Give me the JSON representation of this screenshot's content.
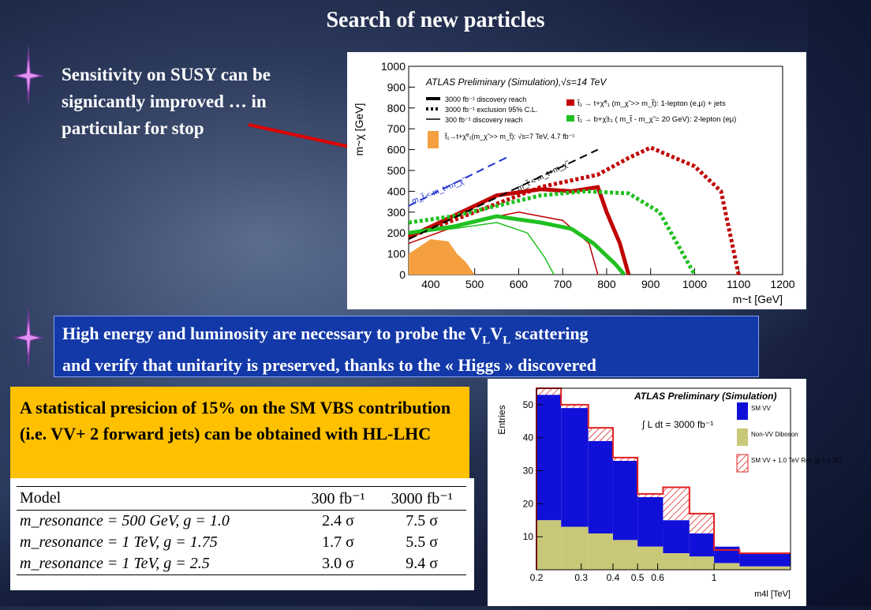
{
  "slide": {
    "title": "Search of new particles",
    "bullet1": "Sensitivity on SUSY can be signicantly improved … in particular for stop",
    "blue_box": {
      "line1_pre": "High energy and luminosity are necessary to probe the V",
      "sub_L1": "L",
      "mid": "V",
      "sub_L2": "L",
      "line1_post": " scattering",
      "line2": "and verify that unitarity is preserved, thanks to the « Higgs » discovered"
    },
    "orange_box": "A statistical presicion of 15% on the SM VBS contribution (i.e. VV+ 2 forward jets) can be obtained with HL-LHC",
    "colors": {
      "blue_box": "#1338a8",
      "orange_box": "#ffc000",
      "arrow": "#e00000",
      "star": "#d070e0"
    }
  },
  "table": {
    "headers": [
      "Model",
      "300 fb⁻¹",
      "3000 fb⁻¹"
    ],
    "rows": [
      {
        "model": "m_resonance = 500 GeV, g = 1.0",
        "v300": "2.4 σ",
        "v3000": "7.5 σ"
      },
      {
        "model": "m_resonance = 1 TeV, g = 1.75",
        "v300": "1.7 σ",
        "v3000": "5.5 σ"
      },
      {
        "model": "m_resonance = 1 TeV, g = 2.5",
        "v300": "3.0 σ",
        "v3000": "9.4 σ"
      }
    ]
  },
  "chart_data": [
    {
      "type": "line",
      "title": "ATLAS Preliminary (Simulation),√s=14 TeV",
      "xlabel": "m~t [GeV]",
      "ylabel": "m~χ [GeV]",
      "xlim": [
        350,
        1200
      ],
      "ylim": [
        0,
        1000
      ],
      "xticks": [
        400,
        500,
        600,
        700,
        800,
        900,
        1000,
        1100,
        1200
      ],
      "yticks": [
        0,
        100,
        200,
        300,
        400,
        500,
        600,
        700,
        800,
        900,
        1000
      ],
      "legend_left": [
        "3000 fb⁻¹ discovery reach",
        "3000 fb⁻¹ exclusion 95% C.L.",
        "300 fb⁻¹ discovery reach",
        "t̃₁→t+χ̃⁰₁(m_χ̃ >> m_t̃): √s=7 TeV, 4.7 fb⁻¹"
      ],
      "legend_right": [
        "t̃₁ → t+χ̃⁰₁ (m_χ̃ >> m_t̃): 1-lepton (e,μ) + jets",
        "t̃₁ → b+χ̃±₁ ( m_t̃ - m_χ̃ = 20 GeV): 2-lepton (eμ)"
      ],
      "annotations": [
        "m_t̃ < m_t+m_χ̃",
        "m_t̃ < m_t+m_χ̃"
      ],
      "series": [
        {
          "name": "t̃₁ → t+χ̃⁰₁ (m_χ̃ >> m_t̃): 1-lepton (e,μ) + jets",
          "style": "discovery-3000",
          "color": "#c00000",
          "x": [
            350,
            450,
            550,
            650,
            720,
            780,
            800,
            830,
            850
          ],
          "y": [
            180,
            280,
            380,
            410,
            400,
            420,
            300,
            150,
            0
          ]
        },
        {
          "name": "t̃₁ → t+χ̃⁰₁ (m_χ̃ >> m_t̃): 1-lepton (e,μ) + jets",
          "style": "exclusion-3000",
          "color": "#c00000",
          "x": [
            350,
            500,
            650,
            780,
            850,
            900,
            1000,
            1060,
            1080,
            1100
          ],
          "y": [
            180,
            300,
            420,
            480,
            560,
            610,
            520,
            400,
            200,
            0
          ]
        },
        {
          "name": "t̃₁ → t+χ̃⁰₁ (m_χ̃ >> m_t̃): 1-lepton (e,μ) + jets",
          "style": "discovery-300",
          "color": "#c00000",
          "x": [
            350,
            480,
            600,
            700,
            760,
            780
          ],
          "y": [
            150,
            250,
            300,
            260,
            150,
            0
          ]
        },
        {
          "name": "t̃₁ → b+χ̃±₁ ( m_t̃ - m_χ̃ = 20 GeV): 2-lepton (eμ)",
          "style": "discovery-3000",
          "color": "#20c020",
          "x": [
            350,
            450,
            550,
            650,
            720,
            770,
            820,
            840
          ],
          "y": [
            200,
            230,
            280,
            250,
            220,
            150,
            50,
            0
          ]
        },
        {
          "name": "t̃₁ → b+χ̃±₁ ( m_t̃ - m_χ̃ = 20 GeV): 2-lepton (eμ)",
          "style": "exclusion-3000",
          "color": "#20c020",
          "x": [
            350,
            450,
            550,
            650,
            750,
            850,
            920,
            960,
            1000
          ],
          "y": [
            250,
            280,
            330,
            380,
            400,
            390,
            300,
            150,
            0
          ]
        },
        {
          "name": "t̃₁ → b+χ̃±₁ ( m_t̃ - m_χ̃ = 20 GeV): 2-lepton (eμ)",
          "style": "discovery-300",
          "color": "#20c020",
          "x": [
            350,
            450,
            550,
            620,
            660,
            680
          ],
          "y": [
            200,
            220,
            250,
            200,
            80,
            0
          ]
        },
        {
          "name": "t̃₁→t+χ̃⁰₁(m_χ̃ >> m_t̃): √s=7 TeV, 4.7 fb⁻¹",
          "style": "area",
          "color": "#f5a040",
          "x": [
            350,
            400,
            440,
            460,
            480,
            500
          ],
          "y": [
            100,
            170,
            160,
            100,
            60,
            0
          ]
        },
        {
          "name": "m_t̃ < m_t+m_χ̃",
          "style": "kinematic",
          "color": "#2030d0",
          "x": [
            350,
            580
          ],
          "y": [
            330,
            570
          ]
        },
        {
          "name": "m_t̃ < m_t+m_χ̃",
          "style": "kinematic",
          "color": "#000000",
          "x": [
            350,
            780
          ],
          "y": [
            170,
            600
          ]
        }
      ]
    },
    {
      "type": "bar",
      "title": "ATLAS Preliminary (Simulation)",
      "subtitle": "∫ L dt = 3000 fb⁻¹",
      "xlabel": "m4l [TeV]",
      "ylabel": "Entries",
      "xscale": "log",
      "xlim": [
        0.2,
        2.0
      ],
      "ylim": [
        0,
        55
      ],
      "xticks": [
        "0.2",
        "0.3",
        "0.4",
        "0.5",
        "0.6",
        "1"
      ],
      "yticks": [
        10,
        20,
        30,
        40,
        50
      ],
      "bin_edges": [
        0.2,
        0.25,
        0.32,
        0.4,
        0.5,
        0.63,
        0.8,
        1.0,
        1.26,
        2.0
      ],
      "legend": [
        "SM VV",
        "Non-VV Diboson",
        "SM VV + 1.0 TeV Res (g = 1.75)"
      ],
      "series": [
        {
          "name": "Non-VV Diboson",
          "color": "#c8c878",
          "values": [
            15,
            13,
            11,
            9,
            7,
            5,
            4,
            2,
            1
          ]
        },
        {
          "name": "SM VV",
          "color": "#1010d8",
          "values": [
            38,
            36,
            28,
            24,
            15,
            10,
            7,
            5,
            4
          ]
        },
        {
          "name": "SM VV + 1.0 TeV Res (g = 1.75)",
          "color": "#e02020",
          "values": [
            55,
            50,
            43,
            34,
            23,
            25,
            17,
            6,
            5
          ]
        }
      ]
    }
  ]
}
